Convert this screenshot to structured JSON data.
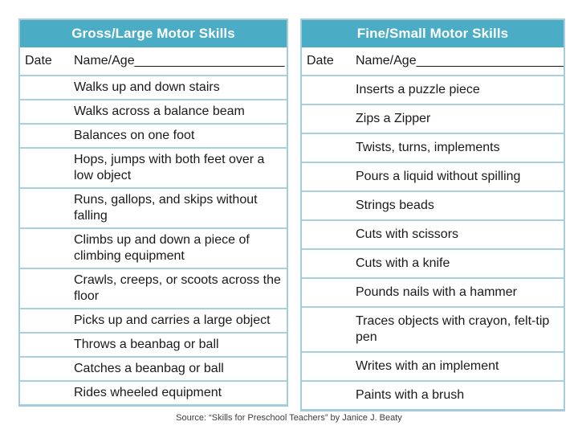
{
  "page": {
    "background": "#ffffff"
  },
  "colors": {
    "header_bg": "#4bacc6",
    "header_text": "#ffffff",
    "table_border": "#a3cddb",
    "row_divider": "#a8d1df",
    "body_text": "#1a1a1a"
  },
  "tables": [
    {
      "title": "Gross/Large Motor Skills",
      "date_label": "Date",
      "name_age_label": "Name/Age_____________________",
      "rows": [
        "Walks up and down stairs",
        "Walks across a balance beam",
        "Balances on one foot",
        "Hops, jumps with both feet over a low object",
        "Runs, gallops, and skips without falling",
        "Climbs up and down a piece of climbing equipment",
        "Crawls, creeps, or scoots across the floor",
        "Picks up and carries a large object",
        "Throws a beanbag or ball",
        "Catches a beanbag or ball",
        "Rides wheeled equipment"
      ]
    },
    {
      "title": "Fine/Small Motor Skills",
      "date_label": "Date",
      "name_age_label": "Name/Age_____________________",
      "rows": [
        "Inserts a puzzle piece",
        "Zips a Zipper",
        "Twists, turns, implements",
        "Pours a liquid without spilling",
        "Strings beads",
        "Cuts with scissors",
        "Cuts with a knife",
        "Pounds nails with a hammer",
        "Traces objects with crayon, felt-tip pen",
        "Writes with an implement",
        "Paints with a brush"
      ]
    }
  ],
  "source_note": "Source: “Skills for Preschool Teachers” by Janice J. Beaty"
}
